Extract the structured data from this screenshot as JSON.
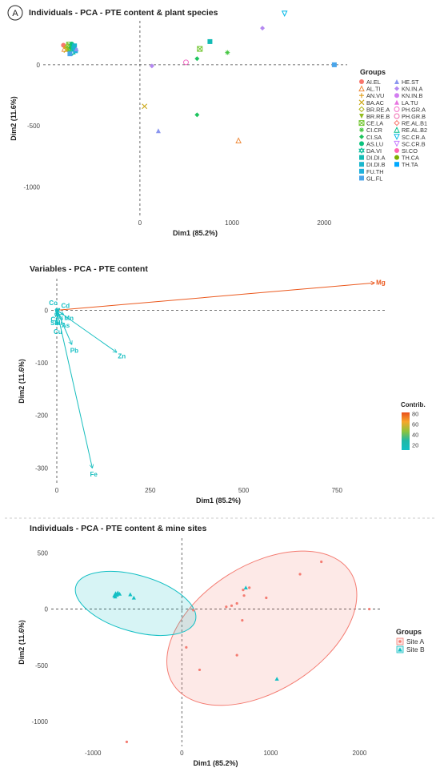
{
  "panel_letter": "A",
  "colors": {
    "site_a": "#f47c72",
    "site_b": "#13bfc4",
    "species": [
      "#f8766d",
      "#ee8a3a",
      "#e1a01f",
      "#cba919",
      "#b1b51d",
      "#93bd21",
      "#6fc52c",
      "#44c640",
      "#1dc45e",
      "#0bc37e",
      "#0bbf9c",
      "#13bbb5",
      "#19b6cc",
      "#1fb1dc",
      "#4aa5ea",
      "#8a96ef",
      "#b488f1",
      "#d27df0",
      "#e875e0",
      "#f46ec8",
      "#f06ab0",
      "#f8766d",
      "#00c08b",
      "#00b8e7",
      "#c77cff",
      "#ff64b0",
      "#7cae00",
      "#00a9ff",
      "#cd9600",
      "#e68613",
      "#00bfc4",
      "#aba300"
    ],
    "gradient": [
      "#e94e1b",
      "#f7a72a",
      "#8fc33b",
      "#1fb8a6",
      "#13bfc4"
    ]
  },
  "chart_data": [
    {
      "type": "scatter",
      "title": "Individuals - PCA - PTE content & plant species",
      "xlabel": "Dim1 (85.2%)",
      "ylabel": "Dim2 (11.6%)",
      "xlim": [
        -1050,
        2250
      ],
      "ylim": [
        -1240,
        360
      ],
      "xticks": [
        0,
        1000,
        2000
      ],
      "yticks": [
        -1000,
        -500,
        0
      ],
      "xtick_labels": [
        "0",
        "1000",
        "2000"
      ],
      "ytick_labels": [
        "-1000",
        "-500",
        "0"
      ],
      "legend_title": "Groups",
      "legend_placement": "right",
      "legend_groups": [
        "AI.EL",
        "AL.TI",
        "AN.VU",
        "BA.AC",
        "BR.RE.A",
        "BR.RE.B",
        "CE.LA",
        "CI.CR",
        "CI.SA",
        "AS.LU",
        "DA.VI",
        "DI.DI.A",
        "DI.DI.B",
        "FU.TH",
        "GL.FL",
        "HE.ST",
        "KN.IN.A",
        "KN.IN.B",
        "LA.TU",
        "PH.GR.A",
        "PH.GR.B",
        "RE.AL.B1",
        "RE.AL.B2",
        "SC.CR.A",
        "SC.CR.B",
        "SI.CO",
        "TH.CA",
        "TH.TA"
      ],
      "legend_shapes": [
        "circle",
        "tri-o",
        "plus",
        "cross",
        "diamond-o",
        "tri-down",
        "square-x",
        "star",
        "diamond",
        "circle",
        "star2",
        "square",
        "square",
        "square",
        "square",
        "triangle",
        "diamond",
        "circle",
        "triangle",
        "circle-o",
        "circle-o",
        "diamond-o",
        "tri-o",
        "tri-down-o",
        "tri-down-o",
        "circle",
        "circle",
        "square"
      ],
      "points": [
        {
          "x": -830,
          "y": 160,
          "g": 0
        },
        {
          "x": -820,
          "y": 130,
          "g": 1
        },
        {
          "x": -810,
          "y": 145,
          "g": 2
        },
        {
          "x": -800,
          "y": 120,
          "g": 3
        },
        {
          "x": -790,
          "y": 150,
          "g": 4
        },
        {
          "x": -780,
          "y": 125,
          "g": 5
        },
        {
          "x": -770,
          "y": 165,
          "g": 6
        },
        {
          "x": -760,
          "y": 110,
          "g": 7
        },
        {
          "x": -750,
          "y": 140,
          "g": 8
        },
        {
          "x": -740,
          "y": 170,
          "g": 9
        },
        {
          "x": -730,
          "y": 100,
          "g": 10
        },
        {
          "x": -720,
          "y": 135,
          "g": 11
        },
        {
          "x": -710,
          "y": 155,
          "g": 12
        },
        {
          "x": -700,
          "y": 115,
          "g": 13
        },
        {
          "x": -760,
          "y": 90,
          "g": 14
        },
        {
          "x": -690,
          "y": 130,
          "g": 15
        },
        {
          "x": 1070,
          "y": -620,
          "g": 1
        },
        {
          "x": 130,
          "y": -10,
          "g": 16
        },
        {
          "x": 200,
          "y": -540,
          "g": 15
        },
        {
          "x": 620,
          "y": -410,
          "g": 8
        },
        {
          "x": 50,
          "y": -340,
          "g": 3
        },
        {
          "x": 620,
          "y": 50,
          "g": 8
        },
        {
          "x": 650,
          "y": 130,
          "g": 6
        },
        {
          "x": 760,
          "y": 190,
          "g": 11
        },
        {
          "x": 950,
          "y": 100,
          "g": 7
        },
        {
          "x": 1330,
          "y": 300,
          "g": 16
        },
        {
          "x": 1570,
          "y": 420,
          "g": 23
        },
        {
          "x": 2110,
          "y": 0,
          "g": 14
        },
        {
          "x": 500,
          "y": 20,
          "g": 19
        }
      ]
    },
    {
      "type": "scatter",
      "title": "Variables - PCA - PTE content",
      "xlabel": "Dim1 (85.2%)",
      "ylabel": "Dim2 (11.6%)",
      "xlim": [
        -15,
        880
      ],
      "ylim": [
        -330,
        60
      ],
      "xticks": [
        0,
        250,
        500,
        750
      ],
      "yticks": [
        -300,
        -200,
        -100,
        0
      ],
      "xtick_labels": [
        "0",
        "250",
        "500",
        "750"
      ],
      "ytick_labels": [
        "-300",
        "-200",
        "-100",
        "0"
      ],
      "legend_title": "Contrib.",
      "legend_placement": "right",
      "colorbar_ticks": [
        20,
        40,
        60,
        80
      ],
      "colorbar_range": [
        10,
        82
      ],
      "vectors": [
        {
          "name": "Mg",
          "x": 850,
          "y": 52,
          "contrib": 80
        },
        {
          "name": "Zn",
          "x": 160,
          "y": -80,
          "contrib": 12
        },
        {
          "name": "Fe",
          "x": 95,
          "y": -300,
          "contrib": 14
        },
        {
          "name": "Pb",
          "x": 40,
          "y": -65,
          "contrib": 10
        },
        {
          "name": "Mn",
          "x": 18,
          "y": -8,
          "contrib": 10
        },
        {
          "name": "As",
          "x": 15,
          "y": -18,
          "contrib": 10
        },
        {
          "name": "Cd",
          "x": 8,
          "y": 3,
          "contrib": 10
        },
        {
          "name": "Ni",
          "x": 3,
          "y": -12,
          "contrib": 10
        },
        {
          "name": "Co",
          "x": -2,
          "y": 3,
          "contrib": 10
        },
        {
          "name": "Cr",
          "x": -2,
          "y": -5,
          "contrib": 10
        },
        {
          "name": "Sb",
          "x": -3,
          "y": -12,
          "contrib": 10
        },
        {
          "name": "Cu",
          "x": 2,
          "y": -28,
          "contrib": 10
        }
      ]
    },
    {
      "type": "scatter",
      "title": "Individuals - PCA - PTE content & mine sites",
      "xlabel": "Dim1 (85.2%)",
      "ylabel": "Dim2 (11.6%)",
      "xlim": [
        -1470,
        2230
      ],
      "ylim": [
        -1220,
        630
      ],
      "xticks": [
        -1000,
        0,
        1000,
        2000
      ],
      "yticks": [
        -1000,
        -500,
        0,
        500
      ],
      "xtick_labels": [
        "-1000",
        "0",
        "1000",
        "2000"
      ],
      "ytick_labels": [
        "-1000",
        "-500",
        "0",
        "500"
      ],
      "legend_title": "Groups",
      "legend_placement": "right",
      "legend": [
        "Site A",
        "Site B"
      ],
      "ellipses": [
        {
          "site": "A",
          "cx": 900,
          "cy": -170,
          "rx": 1180,
          "ry": 560,
          "rotate_deg": -32
        },
        {
          "site": "B",
          "cx": -520,
          "cy": 50,
          "rx": 700,
          "ry": 250,
          "rotate_deg": 16
        }
      ],
      "points_a": [
        [
          1570,
          420
        ],
        [
          1330,
          310
        ],
        [
          950,
          100
        ],
        [
          760,
          190
        ],
        [
          690,
          170
        ],
        [
          620,
          50
        ],
        [
          560,
          30
        ],
        [
          500,
          20
        ],
        [
          680,
          -100
        ],
        [
          620,
          -410
        ],
        [
          200,
          -540
        ],
        [
          50,
          -340
        ],
        [
          130,
          -10
        ],
        [
          2110,
          0
        ],
        [
          -620,
          -1180
        ],
        [
          700,
          120
        ]
      ],
      "points_b": [
        [
          -730,
          130
        ],
        [
          -745,
          140
        ],
        [
          -760,
          120
        ],
        [
          -720,
          145
        ],
        [
          -750,
          110
        ],
        [
          -735,
          125
        ],
        [
          -580,
          130
        ],
        [
          -540,
          100
        ],
        [
          720,
          190
        ],
        [
          1070,
          -620
        ],
        [
          -700,
          135
        ]
      ]
    }
  ]
}
